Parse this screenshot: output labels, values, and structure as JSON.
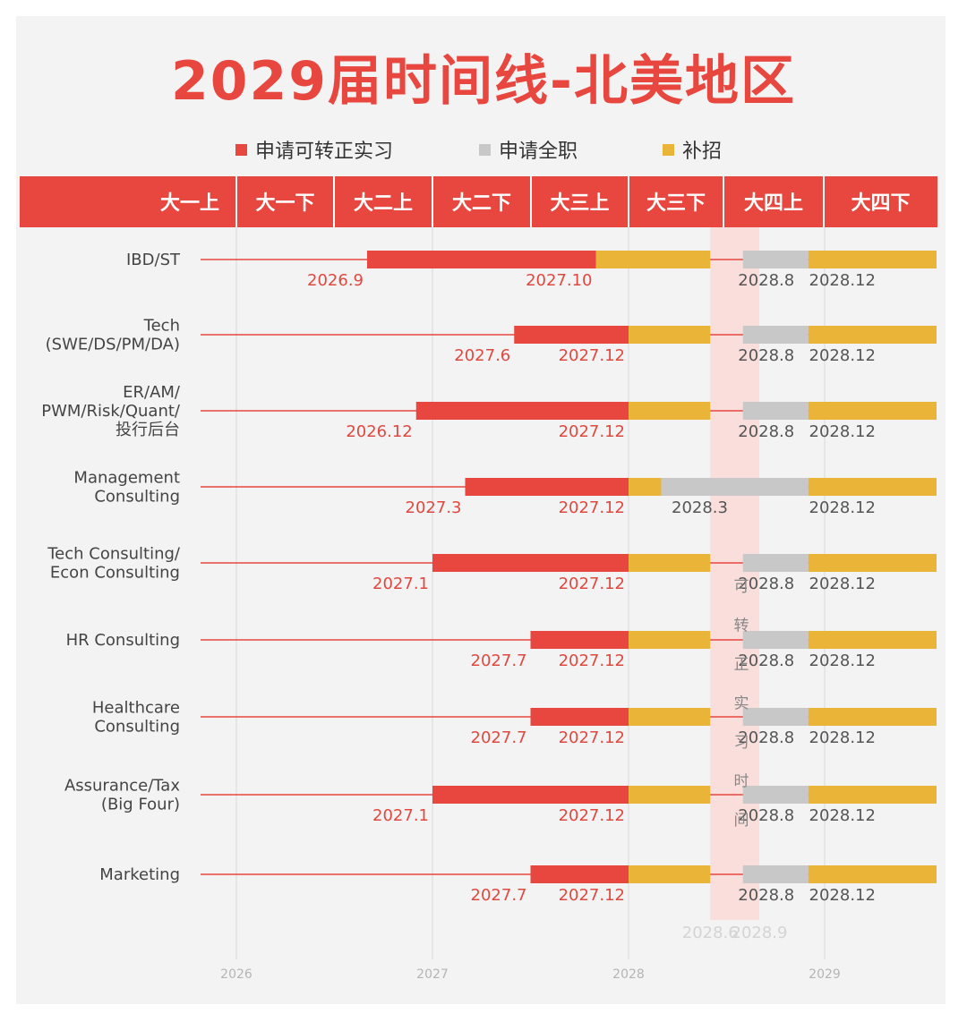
{
  "title": "2029届时间线-北美地区",
  "colors": {
    "intern": "#e8473f",
    "fulltime": "#c8c8c8",
    "supplement": "#e9b437",
    "header_bg": "#e8473f",
    "shade": "#f9d9d6",
    "line": "#e8473f"
  },
  "legend": {
    "intern": "申请可转正实习",
    "fulltime": "申请全职",
    "supplement": "补招"
  },
  "semesters": [
    "大一上",
    "大一下",
    "大二上",
    "大二下",
    "大三上",
    "大三下",
    "大四上",
    "大四下"
  ],
  "conversion_window": {
    "label_chars": [
      "可",
      "转",
      "正",
      "实",
      "习",
      "时",
      "间"
    ],
    "start": "2028.6",
    "end": "2028.9"
  },
  "chart_data": {
    "type": "gantt",
    "title": "2029届时间线-北美地区",
    "x_axis": {
      "ticks": [
        "2026",
        "2027",
        "2028",
        "2029"
      ],
      "range": [
        "2025.8",
        "2029.7"
      ]
    },
    "series": [
      {
        "name": "申请可转正实习",
        "color": "#e8473f"
      },
      {
        "name": "申请全职",
        "color": "#c8c8c8"
      },
      {
        "name": "补招",
        "color": "#e9b437"
      }
    ],
    "rows": [
      {
        "label": [
          "IBD/ST"
        ],
        "intern_start": "2026.9",
        "intern_end": "2027.10",
        "fulltime_start": "2028.8",
        "supplement_start": "2028.12"
      },
      {
        "label": [
          "Tech",
          "(SWE/DS/PM/DA)"
        ],
        "intern_start": "2027.6",
        "intern_end": "2027.12",
        "fulltime_start": "2028.8",
        "supplement_start": "2028.12"
      },
      {
        "label": [
          "ER/AM/",
          "PWM/Risk/Quant/",
          "投行后台"
        ],
        "intern_start": "2026.12",
        "intern_end": "2027.12",
        "fulltime_start": "2028.8",
        "supplement_start": "2028.12"
      },
      {
        "label": [
          "Management",
          "Consulting"
        ],
        "intern_start": "2027.3",
        "intern_end": "2027.12",
        "fulltime_start": "2028.3",
        "supplement_start": "2028.12"
      },
      {
        "label": [
          "Tech Consulting/",
          "Econ Consulting"
        ],
        "intern_start": "2027.1",
        "intern_end": "2027.12",
        "fulltime_start": "2028.8",
        "supplement_start": "2028.12"
      },
      {
        "label": [
          "HR Consulting"
        ],
        "intern_start": "2027.7",
        "intern_end": "2027.12",
        "fulltime_start": "2028.8",
        "supplement_start": "2028.12"
      },
      {
        "label": [
          "Healthcare",
          "Consulting"
        ],
        "intern_start": "2027.7",
        "intern_end": "2027.12",
        "fulltime_start": "2028.8",
        "supplement_start": "2028.12"
      },
      {
        "label": [
          "Assurance/Tax",
          "(Big Four)"
        ],
        "intern_start": "2027.1",
        "intern_end": "2027.12",
        "fulltime_start": "2028.8",
        "supplement_start": "2028.12"
      },
      {
        "label": [
          "Marketing"
        ],
        "intern_start": "2027.7",
        "intern_end": "2027.12",
        "fulltime_start": "2028.8",
        "supplement_start": "2028.12"
      }
    ]
  }
}
